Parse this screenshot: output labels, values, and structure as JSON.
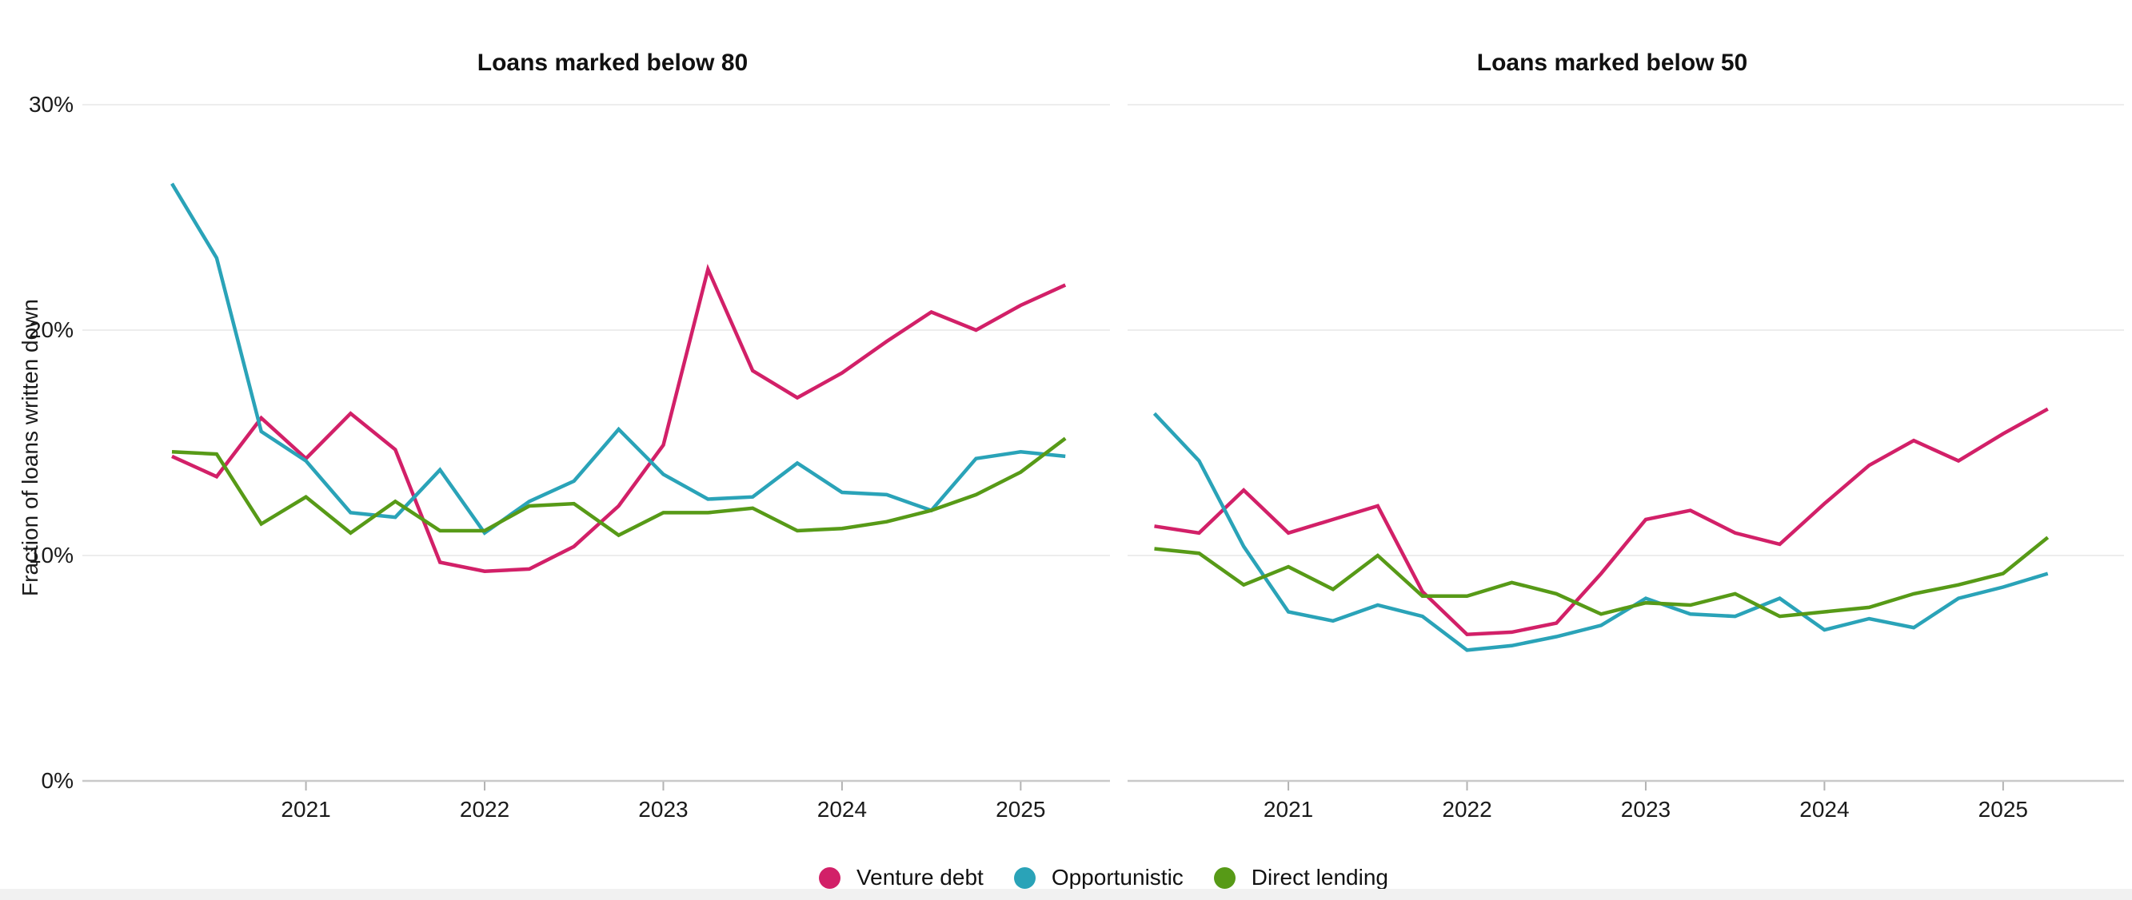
{
  "page": {
    "background": "#ffffff"
  },
  "y_axis": {
    "title": "Fraction of loans written down",
    "tick_values": [
      0,
      10,
      20,
      30
    ],
    "tick_labels": [
      "0%",
      "10%",
      "20%",
      "30%"
    ]
  },
  "x_axis": {
    "tick_labels": [
      "2021",
      "2022",
      "2023",
      "2024",
      "2025"
    ]
  },
  "legend": [
    {
      "label": "Venture debt",
      "color": "#d22068"
    },
    {
      "label": "Opportunistic",
      "color": "#2aa3b8"
    },
    {
      "label": "Direct lending",
      "color": "#579a17"
    }
  ],
  "colors": {
    "venture_debt": "#d22068",
    "opportunistic": "#2aa3b8",
    "direct_lending": "#579a17",
    "gridline": "#ededed",
    "axis_line": "#c9c9c9",
    "tick_mark": "#b3b3b3"
  },
  "chart_data": [
    {
      "type": "line",
      "title": "Loans marked below 80",
      "ylabel": "Fraction of loans written down",
      "ylim": [
        0,
        30
      ],
      "grid": "horizontal",
      "legend_position": "bottom",
      "x": [
        "2020-Q2",
        "2020-Q3",
        "2020-Q4",
        "2021-Q1",
        "2021-Q2",
        "2021-Q3",
        "2021-Q4",
        "2022-Q1",
        "2022-Q2",
        "2022-Q3",
        "2022-Q4",
        "2023-Q1",
        "2023-Q2",
        "2023-Q3",
        "2023-Q4",
        "2024-Q1",
        "2024-Q2",
        "2024-Q3",
        "2024-Q4",
        "2025-Q1",
        "2025-Q2"
      ],
      "year_ticks": [
        "2021",
        "2022",
        "2023",
        "2024",
        "2025"
      ],
      "series": [
        {
          "name": "Venture debt",
          "color": "#d22068",
          "values": [
            14.4,
            13.5,
            16.1,
            14.3,
            16.3,
            14.7,
            9.7,
            9.3,
            9.4,
            10.4,
            12.2,
            14.9,
            22.7,
            18.2,
            17.0,
            18.1,
            19.5,
            20.8,
            20.0,
            21.1,
            22.0
          ]
        },
        {
          "name": "Opportunistic",
          "color": "#2aa3b8",
          "values": [
            26.5,
            23.2,
            15.5,
            14.2,
            11.9,
            11.7,
            13.8,
            11.0,
            12.4,
            13.3,
            15.6,
            13.6,
            12.5,
            12.6,
            14.1,
            12.8,
            12.7,
            12.0,
            14.3,
            14.6,
            14.4
          ]
        },
        {
          "name": "Direct lending",
          "color": "#579a17",
          "values": [
            14.6,
            14.5,
            11.4,
            12.6,
            11.0,
            12.4,
            11.1,
            11.1,
            12.2,
            12.3,
            10.9,
            11.9,
            11.9,
            12.1,
            11.1,
            11.2,
            11.5,
            12.0,
            12.7,
            13.7,
            15.2
          ]
        }
      ]
    },
    {
      "type": "line",
      "title": "Loans marked below 50",
      "ylabel": "Fraction of loans written down",
      "ylim": [
        0,
        30
      ],
      "grid": "horizontal",
      "legend_position": "bottom",
      "x": [
        "2020-Q2",
        "2020-Q3",
        "2020-Q4",
        "2021-Q1",
        "2021-Q2",
        "2021-Q3",
        "2021-Q4",
        "2022-Q1",
        "2022-Q2",
        "2022-Q3",
        "2022-Q4",
        "2023-Q1",
        "2023-Q2",
        "2023-Q3",
        "2023-Q4",
        "2024-Q1",
        "2024-Q2",
        "2024-Q3",
        "2024-Q4",
        "2025-Q1",
        "2025-Q2"
      ],
      "year_ticks": [
        "2021",
        "2022",
        "2023",
        "2024",
        "2025"
      ],
      "series": [
        {
          "name": "Venture debt",
          "color": "#d22068",
          "values": [
            11.3,
            11.0,
            12.9,
            11.0,
            11.6,
            12.2,
            8.4,
            6.5,
            6.6,
            7.0,
            9.2,
            11.6,
            12.0,
            11.0,
            10.5,
            12.3,
            14.0,
            15.1,
            14.2,
            15.4,
            16.5
          ]
        },
        {
          "name": "Opportunistic",
          "color": "#2aa3b8",
          "values": [
            16.3,
            14.2,
            10.4,
            7.5,
            7.1,
            7.8,
            7.3,
            5.8,
            6.0,
            6.4,
            6.9,
            8.1,
            7.4,
            7.3,
            8.1,
            6.7,
            7.2,
            6.8,
            8.1,
            8.6,
            9.2
          ]
        },
        {
          "name": "Direct lending",
          "color": "#579a17",
          "values": [
            10.3,
            10.1,
            8.7,
            9.5,
            8.5,
            10.0,
            8.2,
            8.2,
            8.8,
            8.3,
            7.4,
            7.9,
            7.8,
            8.3,
            7.3,
            7.5,
            7.7,
            8.3,
            8.7,
            9.2,
            10.8
          ]
        }
      ]
    }
  ]
}
